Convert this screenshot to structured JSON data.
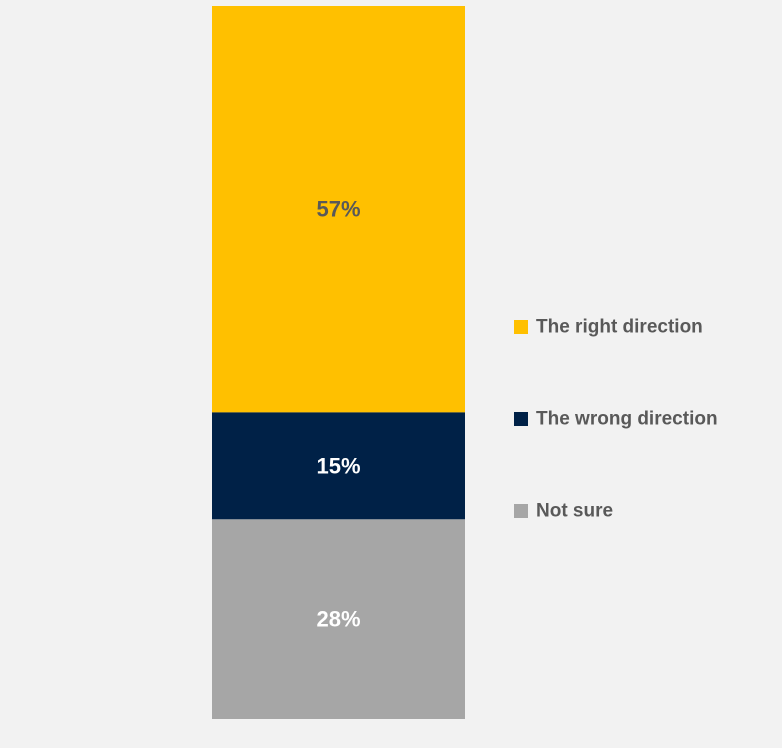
{
  "chart_data": {
    "type": "bar",
    "stacked": true,
    "orientation": "vertical",
    "categories": [
      ""
    ],
    "series": [
      {
        "name": "The right direction",
        "values": [
          57
        ],
        "color": "#ffc000",
        "label": "57%",
        "label_color": "#595959"
      },
      {
        "name": "The wrong direction",
        "values": [
          15
        ],
        "color": "#002147",
        "label": "15%",
        "label_color": "#ffffff"
      },
      {
        "name": "Not sure",
        "values": [
          28
        ],
        "color": "#a6a6a6",
        "label": "28%",
        "label_color": "#ffffff"
      }
    ],
    "ylim": [
      0,
      100
    ],
    "grid": false,
    "legend_position": "right",
    "background": "#f2f2f2"
  }
}
